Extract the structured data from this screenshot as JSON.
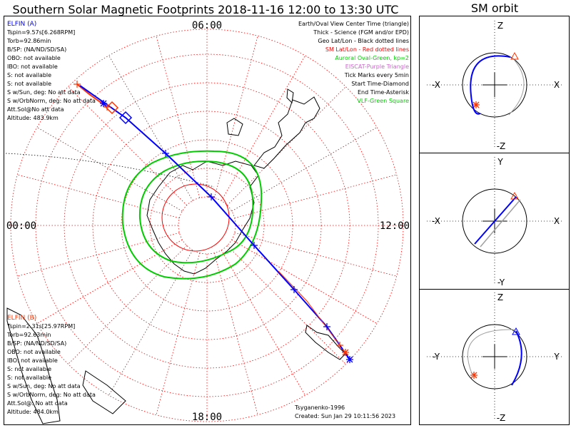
{
  "title": "Southern Solar Magnetic Footprints 2018-11-16 12:00 to 13:30 UTC",
  "orbit_title": "SM orbit",
  "clock": {
    "top": "06:00",
    "left": "00:00",
    "right": "12:00",
    "bottom": "18:00"
  },
  "legend": {
    "lines": [
      {
        "text": "Earth/Oval View Center Time (triangle)",
        "color": "#000000"
      },
      {
        "text": "Thick - Science (FGM and/or EPD)",
        "color": "#000000"
      },
      {
        "text": "Geo Lat/Lon - Black dotted lines",
        "color": "#000000"
      },
      {
        "text": "SM Lat/Lon - Red dotted lines",
        "color": "#ff0000"
      },
      {
        "text": "Auroral Oval-Green, kp=2",
        "color": "#00cc00"
      },
      {
        "text": "EISCAT-Purple Triangle",
        "color": "#cc66cc"
      },
      {
        "text": "Tick Marks every 5min",
        "color": "#000000"
      },
      {
        "text": "Start Time-Diamond",
        "color": "#000000"
      },
      {
        "text": "End Time-Asterisk",
        "color": "#000000"
      },
      {
        "text": "VLF-Green Square",
        "color": "#00cc00"
      }
    ]
  },
  "elfin_a": {
    "name": "ELFIN (A)",
    "color": "#0000ff",
    "lines": [
      "Tspin=9.57s[6.268RPM]",
      "Torb=92.86min",
      "B/SP: (NA/ND/SD/SA)",
      "OBO: not available",
      "IBO: not available",
      "S: not available",
      "S: not available",
      "S w/Sun, deg: No att data",
      "S w/OrbNorm, deg: No att data",
      "Att.Sol@No att data",
      "Altitude: 483.9km"
    ]
  },
  "elfin_b": {
    "name": "ELFIN (B)",
    "color": "#ff3300",
    "lines": [
      "Tspin=2.31s[25.97RPM]",
      "Torb=92.63min",
      "B/SP: (NA/ND/SD/SA)",
      "OBO: not available",
      "IBO: not available",
      "S: not available",
      "S: not available",
      "S w/Sun, deg: No att data",
      "S w/OrbNorm, deg: No att data",
      "Att.Sol@: No att data",
      "Altitude: 484.0km"
    ]
  },
  "footer": {
    "model": "Tsyganenko-1996",
    "created": "Created: Sun Jan 29 10:11:56 2023"
  },
  "orbit_panels": [
    {
      "top": "Z",
      "bottom": "-Z",
      "left": "-X",
      "right": "X"
    },
    {
      "top": "Y",
      "bottom": "-Y",
      "left": "-X",
      "right": "X"
    },
    {
      "top": "Z",
      "bottom": "-Z",
      "left": "-Y",
      "right": "Y"
    }
  ],
  "colors": {
    "elfin_a": "#0000ff",
    "elfin_b": "#ff3300",
    "sm_grid": "#ff0000",
    "oval": "#00cc00",
    "coast": "#000000",
    "grey_orbit": "#a0a0a0"
  }
}
